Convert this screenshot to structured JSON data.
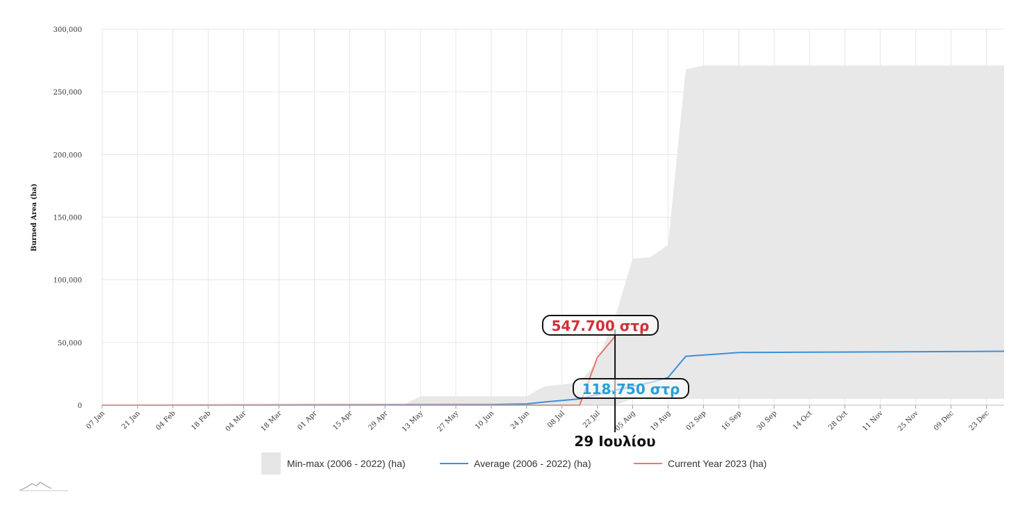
{
  "chart_data": {
    "type": "area",
    "ylabel": "Burned Area (ha)",
    "ylim": [
      0,
      300000
    ],
    "yticks": [
      0,
      50000,
      100000,
      150000,
      200000,
      250000,
      300000
    ],
    "ytick_labels": [
      "0",
      "50,000",
      "100,000",
      "150,000",
      "200,000",
      "250,000",
      "300,000"
    ],
    "xlim": [
      "2023-01-07",
      "2023-12-30"
    ],
    "xtick_labels": [
      "07 Jan",
      "21 Jan",
      "04 Feb",
      "18 Feb",
      "04 Mar",
      "18 Mar",
      "01 Apr",
      "15 Apr",
      "29 Apr",
      "13 May",
      "27 May",
      "10 Jun",
      "24 Jun",
      "08 Jul",
      "22 Jul",
      "05 Aug",
      "19 Aug",
      "02 Sep",
      "16 Sep",
      "30 Sep",
      "14 Oct",
      "28 Oct",
      "11 Nov",
      "25 Nov",
      "09 Dec",
      "23 Dec"
    ],
    "grid": true,
    "legend_position": "bottom",
    "colors": {
      "band": "#e8e8e8",
      "average": "#3a8fd9",
      "current": "#e5776e"
    },
    "series": [
      {
        "name": "Min-max (2006 - 2022) (ha)",
        "kind": "band",
        "x": [
          "2023-01-07",
          "2023-05-06",
          "2023-05-13",
          "2023-06-24",
          "2023-07-01",
          "2023-07-15",
          "2023-07-22",
          "2023-07-29",
          "2023-08-05",
          "2023-08-12",
          "2023-08-19",
          "2023-08-26",
          "2023-09-02",
          "2023-09-16",
          "2023-12-30"
        ],
        "lower": [
          0,
          0,
          0,
          0,
          0,
          0,
          0,
          0,
          5000,
          5000,
          5000,
          5000,
          5000,
          5000,
          5000
        ],
        "upper": [
          0,
          0,
          7000,
          7000,
          15000,
          18000,
          35000,
          70000,
          117000,
          118000,
          128000,
          268000,
          271000,
          271000,
          271000
        ]
      },
      {
        "name": "Average (2006 - 2022) (ha)",
        "kind": "line",
        "x": [
          "2023-01-07",
          "2023-06-10",
          "2023-06-24",
          "2023-07-01",
          "2023-07-15",
          "2023-07-29",
          "2023-08-05",
          "2023-08-12",
          "2023-08-19",
          "2023-08-26",
          "2023-09-02",
          "2023-09-09",
          "2023-09-16",
          "2023-12-30"
        ],
        "values": [
          0,
          500,
          1000,
          2500,
          5000,
          11875,
          15000,
          18000,
          22000,
          39000,
          40000,
          41000,
          42000,
          43000
        ]
      },
      {
        "name": "Current Year 2023 (ha)",
        "kind": "line",
        "x": [
          "2023-01-07",
          "2023-07-15",
          "2023-07-22",
          "2023-07-29"
        ],
        "values": [
          0,
          0,
          38000,
          54770
        ]
      }
    ],
    "annotations": [
      {
        "text": "547.700 στρ",
        "color": "#d32f3a",
        "x": "2023-07-29",
        "y": 54770
      },
      {
        "text": "118.750 στρ",
        "color": "#2a9fd6",
        "x": "2023-07-29",
        "y": 11875
      },
      {
        "text": "29 Ιουλίου",
        "color": "#111111",
        "x": "2023-07-29"
      }
    ]
  }
}
